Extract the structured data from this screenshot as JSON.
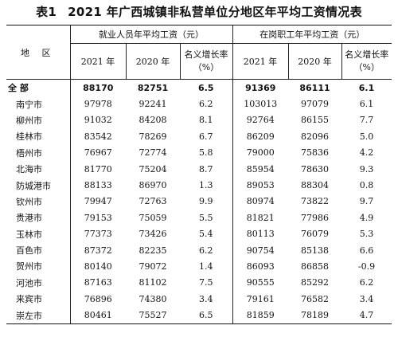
{
  "title": {
    "table_no": "表1",
    "text": "2021 年广西城镇非私营单位分地区年平均工资情况表"
  },
  "header": {
    "region": "地 区",
    "group1": "就业人员年平均工资（元）",
    "group2": "在岗职工年平均工资（元）",
    "year2021": "2021 年",
    "year2020": "2020 年",
    "growth_line1": "名义增长率",
    "growth_line2": "（%）"
  },
  "rows": [
    {
      "region": "全 部",
      "e2021": "88170",
      "e2020": "82751",
      "eg": "6.5",
      "s2021": "91369",
      "s2020": "86111",
      "sg": "6.1"
    },
    {
      "region": "南宁市",
      "e2021": "97978",
      "e2020": "92241",
      "eg": "6.2",
      "s2021": "103013",
      "s2020": "97079",
      "sg": "6.1"
    },
    {
      "region": "柳州市",
      "e2021": "91032",
      "e2020": "84208",
      "eg": "8.1",
      "s2021": "92764",
      "s2020": "86155",
      "sg": "7.7"
    },
    {
      "region": "桂林市",
      "e2021": "83542",
      "e2020": "78269",
      "eg": "6.7",
      "s2021": "86209",
      "s2020": "82096",
      "sg": "5.0"
    },
    {
      "region": "梧州市",
      "e2021": "76967",
      "e2020": "72774",
      "eg": "5.8",
      "s2021": "79000",
      "s2020": "75836",
      "sg": "4.2"
    },
    {
      "region": "北海市",
      "e2021": "81770",
      "e2020": "75204",
      "eg": "8.7",
      "s2021": "85954",
      "s2020": "78630",
      "sg": "9.3"
    },
    {
      "region": "防城港市",
      "e2021": "88133",
      "e2020": "86970",
      "eg": "1.3",
      "s2021": "89053",
      "s2020": "88304",
      "sg": "0.8"
    },
    {
      "region": "钦州市",
      "e2021": "79947",
      "e2020": "72763",
      "eg": "9.9",
      "s2021": "80974",
      "s2020": "73822",
      "sg": "9.7"
    },
    {
      "region": "贵港市",
      "e2021": "79153",
      "e2020": "75059",
      "eg": "5.5",
      "s2021": "81821",
      "s2020": "77986",
      "sg": "4.9"
    },
    {
      "region": "玉林市",
      "e2021": "77373",
      "e2020": "73426",
      "eg": "5.4",
      "s2021": "80113",
      "s2020": "76079",
      "sg": "5.3"
    },
    {
      "region": "百色市",
      "e2021": "87372",
      "e2020": "82235",
      "eg": "6.2",
      "s2021": "90754",
      "s2020": "85138",
      "sg": "6.6"
    },
    {
      "region": "贺州市",
      "e2021": "80140",
      "e2020": "79072",
      "eg": "1.4",
      "s2021": "86093",
      "s2020": "86858",
      "sg": "-0.9"
    },
    {
      "region": "河池市",
      "e2021": "87163",
      "e2020": "81102",
      "eg": "7.5",
      "s2021": "90555",
      "s2020": "85292",
      "sg": "6.2"
    },
    {
      "region": "来宾市",
      "e2021": "76896",
      "e2020": "74380",
      "eg": "3.4",
      "s2021": "79161",
      "s2020": "76582",
      "sg": "3.4"
    },
    {
      "region": "崇左市",
      "e2021": "80461",
      "e2020": "75527",
      "eg": "6.5",
      "s2021": "81859",
      "s2020": "78189",
      "sg": "4.7"
    }
  ]
}
